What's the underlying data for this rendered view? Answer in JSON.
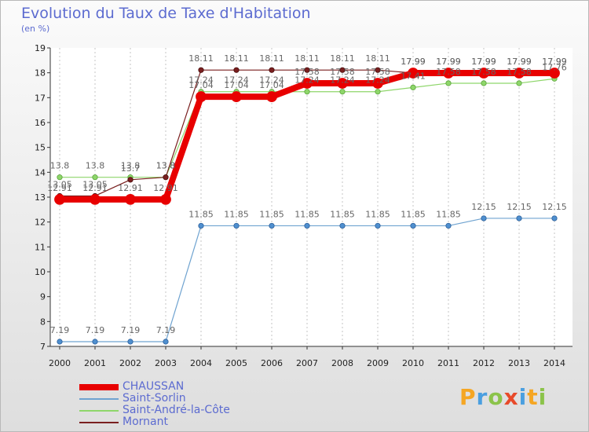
{
  "title": "Evolution du Taux de Taxe d'Habitation",
  "unit": "(en %)",
  "logo": {
    "letters": [
      "P",
      "r",
      "o",
      "x",
      "i",
      "t",
      "i"
    ],
    "colors": [
      "#f5a623",
      "#4a9fe0",
      "#8bc34a",
      "#e84a2a",
      "#4a9fe0",
      "#f5a623",
      "#8bc34a"
    ]
  },
  "chart_data": {
    "type": "line",
    "x": [
      "2000",
      "2001",
      "2002",
      "2003",
      "2004",
      "2005",
      "2006",
      "2007",
      "2008",
      "2009",
      "2010",
      "2011",
      "2012",
      "2013",
      "2014"
    ],
    "ylim": [
      7,
      19
    ],
    "yticks": [
      "7",
      "8",
      "9",
      "10",
      "11",
      "12",
      "13",
      "14",
      "15",
      "16",
      "17",
      "18",
      "19"
    ],
    "grid": "vertical dashed",
    "legend_position": "bottom-left",
    "series": [
      {
        "name": "Saint-Sorlin",
        "color": "#6fa3d0",
        "values": [
          7.19,
          7.19,
          7.19,
          7.19,
          11.85,
          11.85,
          11.85,
          11.85,
          11.85,
          11.85,
          11.85,
          11.85,
          12.15,
          12.15,
          12.15
        ],
        "labels": [
          "7.19",
          "7.19",
          "7.19",
          "7.19",
          "11.85",
          "11.85",
          "11.85",
          "11.85",
          "11.85",
          "11.85",
          "11.85",
          "11.85",
          "12.15",
          "12.15",
          "12.15"
        ]
      },
      {
        "name": "Saint-André-la-Côte",
        "color": "#8ed66a",
        "values": [
          13.8,
          13.8,
          13.8,
          13.8,
          17.24,
          17.24,
          17.24,
          17.24,
          17.24,
          17.24,
          17.41,
          17.58,
          17.58,
          17.58,
          17.76
        ],
        "labels": [
          "13.8",
          "13.8",
          "13.8",
          "13.8",
          "17.24",
          "17.24",
          "17.24",
          "17.24",
          "17.24",
          "17.24",
          "17.41",
          "17.58",
          "17.58",
          "17.58",
          "17.76"
        ]
      },
      {
        "name": "Mornant",
        "color": "#7a1f1f",
        "values": [
          13.05,
          13.05,
          13.7,
          13.8,
          18.11,
          18.11,
          18.11,
          18.11,
          18.11,
          18.11,
          17.99,
          17.99,
          17.99,
          17.99,
          17.99
        ],
        "labels": [
          "13.05",
          "13.05",
          "13.7",
          "13.8",
          "18.11",
          "18.11",
          "18.11",
          "18.11",
          "18.11",
          "18.11",
          "17.99",
          "17.99",
          "17.99",
          "17.99",
          "17.99"
        ]
      },
      {
        "name": "CHAUSSAN",
        "color": "#e80000",
        "values": [
          12.91,
          12.91,
          12.91,
          12.91,
          17.04,
          17.04,
          17.04,
          17.58,
          17.58,
          17.58,
          17.99,
          17.99,
          17.99,
          17.99,
          17.99
        ],
        "labels": [
          "12.91",
          "12.91",
          "12.91",
          "12.91",
          "17.04",
          "17.04",
          "17.04",
          "17.58",
          "17.58",
          "17.58",
          "17.99",
          "17.99",
          "17.99",
          "17.99",
          "17.99"
        ]
      }
    ],
    "legend_order": [
      "CHAUSSAN",
      "Saint-Sorlin",
      "Saint-André-la-Côte",
      "Mornant"
    ]
  }
}
